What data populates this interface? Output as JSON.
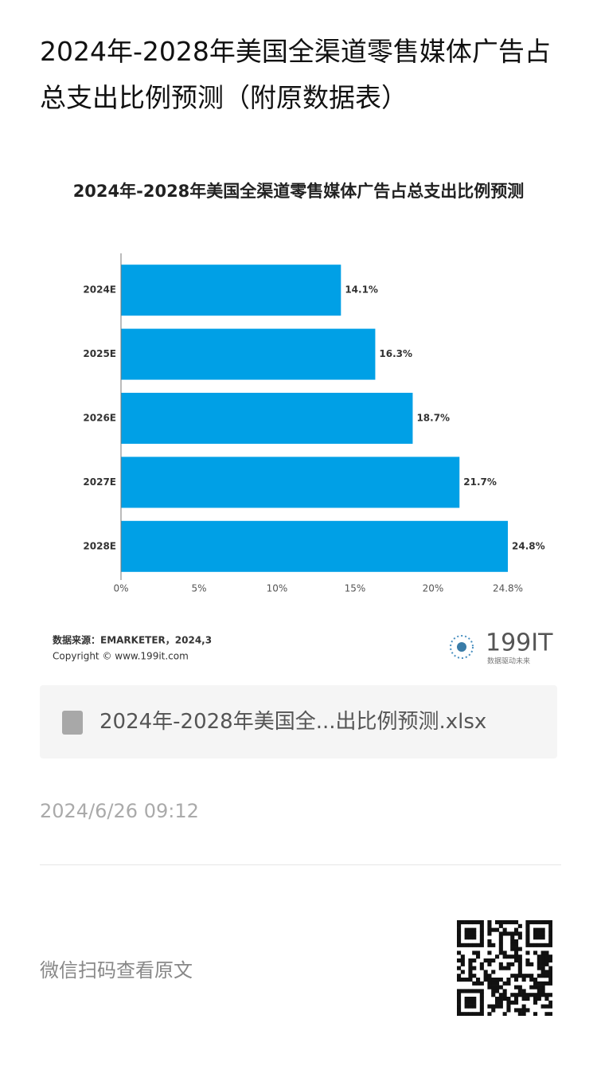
{
  "header": {
    "title": "2024年-2028年美国全渠道零售媒体广告占总支出比例预测（附原数据表）"
  },
  "chart_data": {
    "type": "hbar",
    "title": "2024年-2028年美国全渠道零售媒体广告占总支出比例预测",
    "categories": [
      "2024E",
      "2025E",
      "2026E",
      "2027E",
      "2028E"
    ],
    "values": [
      14.1,
      16.3,
      18.7,
      21.7,
      24.8
    ],
    "value_labels": [
      "14.1%",
      "16.3%",
      "18.7%",
      "21.7%",
      "24.8%"
    ],
    "color": "#00a0e6",
    "xlim": [
      0,
      24.8
    ],
    "xticks": [
      {
        "value": 0,
        "label": "0%"
      },
      {
        "value": 5,
        "label": "5%"
      },
      {
        "value": 10,
        "label": "10%"
      },
      {
        "value": 15,
        "label": "15%"
      },
      {
        "value": 20,
        "label": "20%"
      },
      {
        "value": 24.8,
        "label": "24.8%"
      }
    ],
    "source": "数据来源：EMARKETER，2024,3",
    "copyright": "Copyright © www.199it.com",
    "logo": "199IT",
    "logo_slogan": "数据驱动未来"
  },
  "attachment": {
    "filename": "2024年-2028年美国全...出比例预测.xlsx"
  },
  "date": "2024/6/26 09:12",
  "footer": {
    "scan_text": "微信扫码查看原文"
  }
}
